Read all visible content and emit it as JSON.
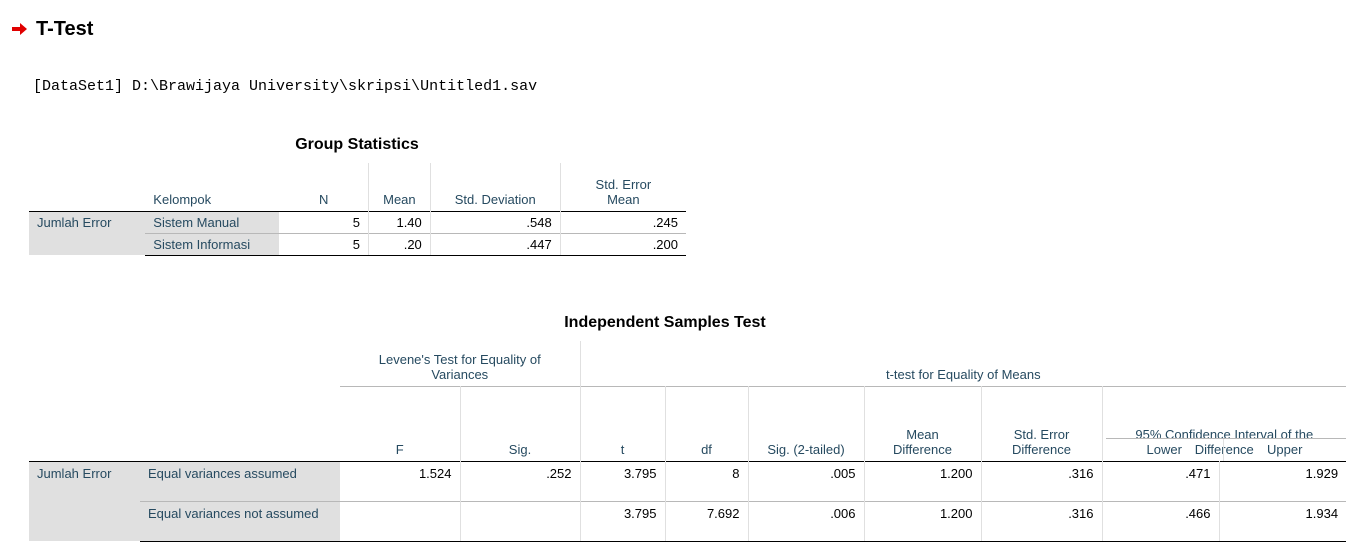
{
  "heading": "T-Test",
  "icons": {
    "bullet": "red-arrow-icon"
  },
  "colors": {
    "arrow": "#e00000",
    "header_text": "#264a60",
    "row_header_bg": "#e0e0e0"
  },
  "dataset": "[DataSet1] D:\\Brawijaya University\\skripsi\\Untitled1.sav",
  "group_statistics": {
    "title": "Group Statistics",
    "headers": {
      "group": "Kelompok",
      "n": "N",
      "mean": "Mean",
      "sd": "Std. Deviation",
      "se": "Std. Error Mean"
    },
    "variable": "Jumlah Error",
    "rows": [
      {
        "group": "Sistem Manual",
        "n": "5",
        "mean": "1.40",
        "sd": ".548",
        "se": ".245"
      },
      {
        "group": "Sistem Informasi",
        "n": "5",
        "mean": ".20",
        "sd": ".447",
        "se": ".200"
      }
    ]
  },
  "independent_test": {
    "title": "Independent Samples Test",
    "levene": "Levene's Test for Equality of Variances",
    "ttest": "t-test for Equality of Means",
    "ci": "95% Confidence Interval of the Difference",
    "headers": {
      "F": "F",
      "sig": "Sig.",
      "t": "t",
      "df": "df",
      "sig2": "Sig. (2-tailed)",
      "mean_diff": "Mean Difference",
      "se_diff": "Std. Error Difference",
      "lower": "Lower",
      "upper": "Upper"
    },
    "variable": "Jumlah Error",
    "rows": [
      {
        "label": "Equal variances assumed",
        "F": "1.524",
        "sig": ".252",
        "t": "3.795",
        "df": "8",
        "sig2": ".005",
        "mean_diff": "1.200",
        "se_diff": ".316",
        "lower": ".471",
        "upper": "1.929"
      },
      {
        "label": "Equal variances not assumed",
        "F": "",
        "sig": "",
        "t": "3.795",
        "df": "7.692",
        "sig2": ".006",
        "mean_diff": "1.200",
        "se_diff": ".316",
        "lower": ".466",
        "upper": "1.934"
      }
    ]
  }
}
